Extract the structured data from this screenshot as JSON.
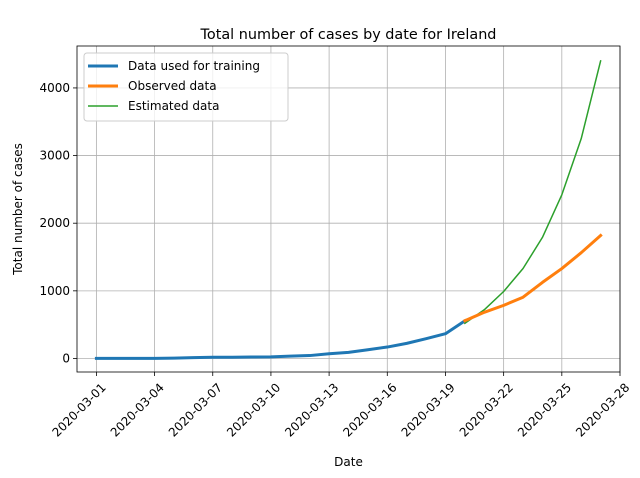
{
  "chart_data": {
    "type": "line",
    "title": "Total number of cases by date for Ireland",
    "xlabel": "Date",
    "ylabel": "Total number of cases",
    "x_tick_labels": [
      "2020-03-01",
      "2020-03-04",
      "2020-03-07",
      "2020-03-10",
      "2020-03-13",
      "2020-03-16",
      "2020-03-19",
      "2020-03-22",
      "2020-03-25",
      "2020-03-28"
    ],
    "x_tick_days": [
      1,
      4,
      7,
      10,
      13,
      16,
      19,
      22,
      25,
      28
    ],
    "xlim": [
      "2020-02-29",
      "2020-03-28"
    ],
    "y_ticks": [
      0,
      1000,
      2000,
      3000,
      4000
    ],
    "ylim": [
      -200,
      4620
    ],
    "grid": true,
    "legend_position": "top-left",
    "series": [
      {
        "name": "Data used for training",
        "color": "#1f77b4",
        "x": [
          "2020-03-01",
          "2020-03-02",
          "2020-03-03",
          "2020-03-04",
          "2020-03-05",
          "2020-03-06",
          "2020-03-07",
          "2020-03-08",
          "2020-03-09",
          "2020-03-10",
          "2020-03-11",
          "2020-03-12",
          "2020-03-13",
          "2020-03-14",
          "2020-03-15",
          "2020-03-16",
          "2020-03-17",
          "2020-03-18",
          "2020-03-19",
          "2020-03-20"
        ],
        "y": [
          1,
          1,
          2,
          2,
          6,
          13,
          18,
          19,
          21,
          24,
          34,
          43,
          70,
          90,
          129,
          169,
          223,
          292,
          366,
          557
        ]
      },
      {
        "name": "Observed data",
        "color": "#ff7f0e",
        "x": [
          "2020-03-20",
          "2020-03-21",
          "2020-03-22",
          "2020-03-23",
          "2020-03-24",
          "2020-03-25",
          "2020-03-26",
          "2020-03-27"
        ],
        "y": [
          557,
          683,
          785,
          906,
          1125,
          1329,
          1564,
          1819
        ]
      },
      {
        "name": "Estimated data",
        "color": "#2ca02c",
        "x": [
          "2020-03-20",
          "2020-03-21",
          "2020-03-22",
          "2020-03-23",
          "2020-03-24",
          "2020-03-25",
          "2020-03-26",
          "2020-03-27"
        ],
        "y": [
          520,
          720,
          990,
          1330,
          1790,
          2420,
          3250,
          4400
        ]
      }
    ]
  }
}
